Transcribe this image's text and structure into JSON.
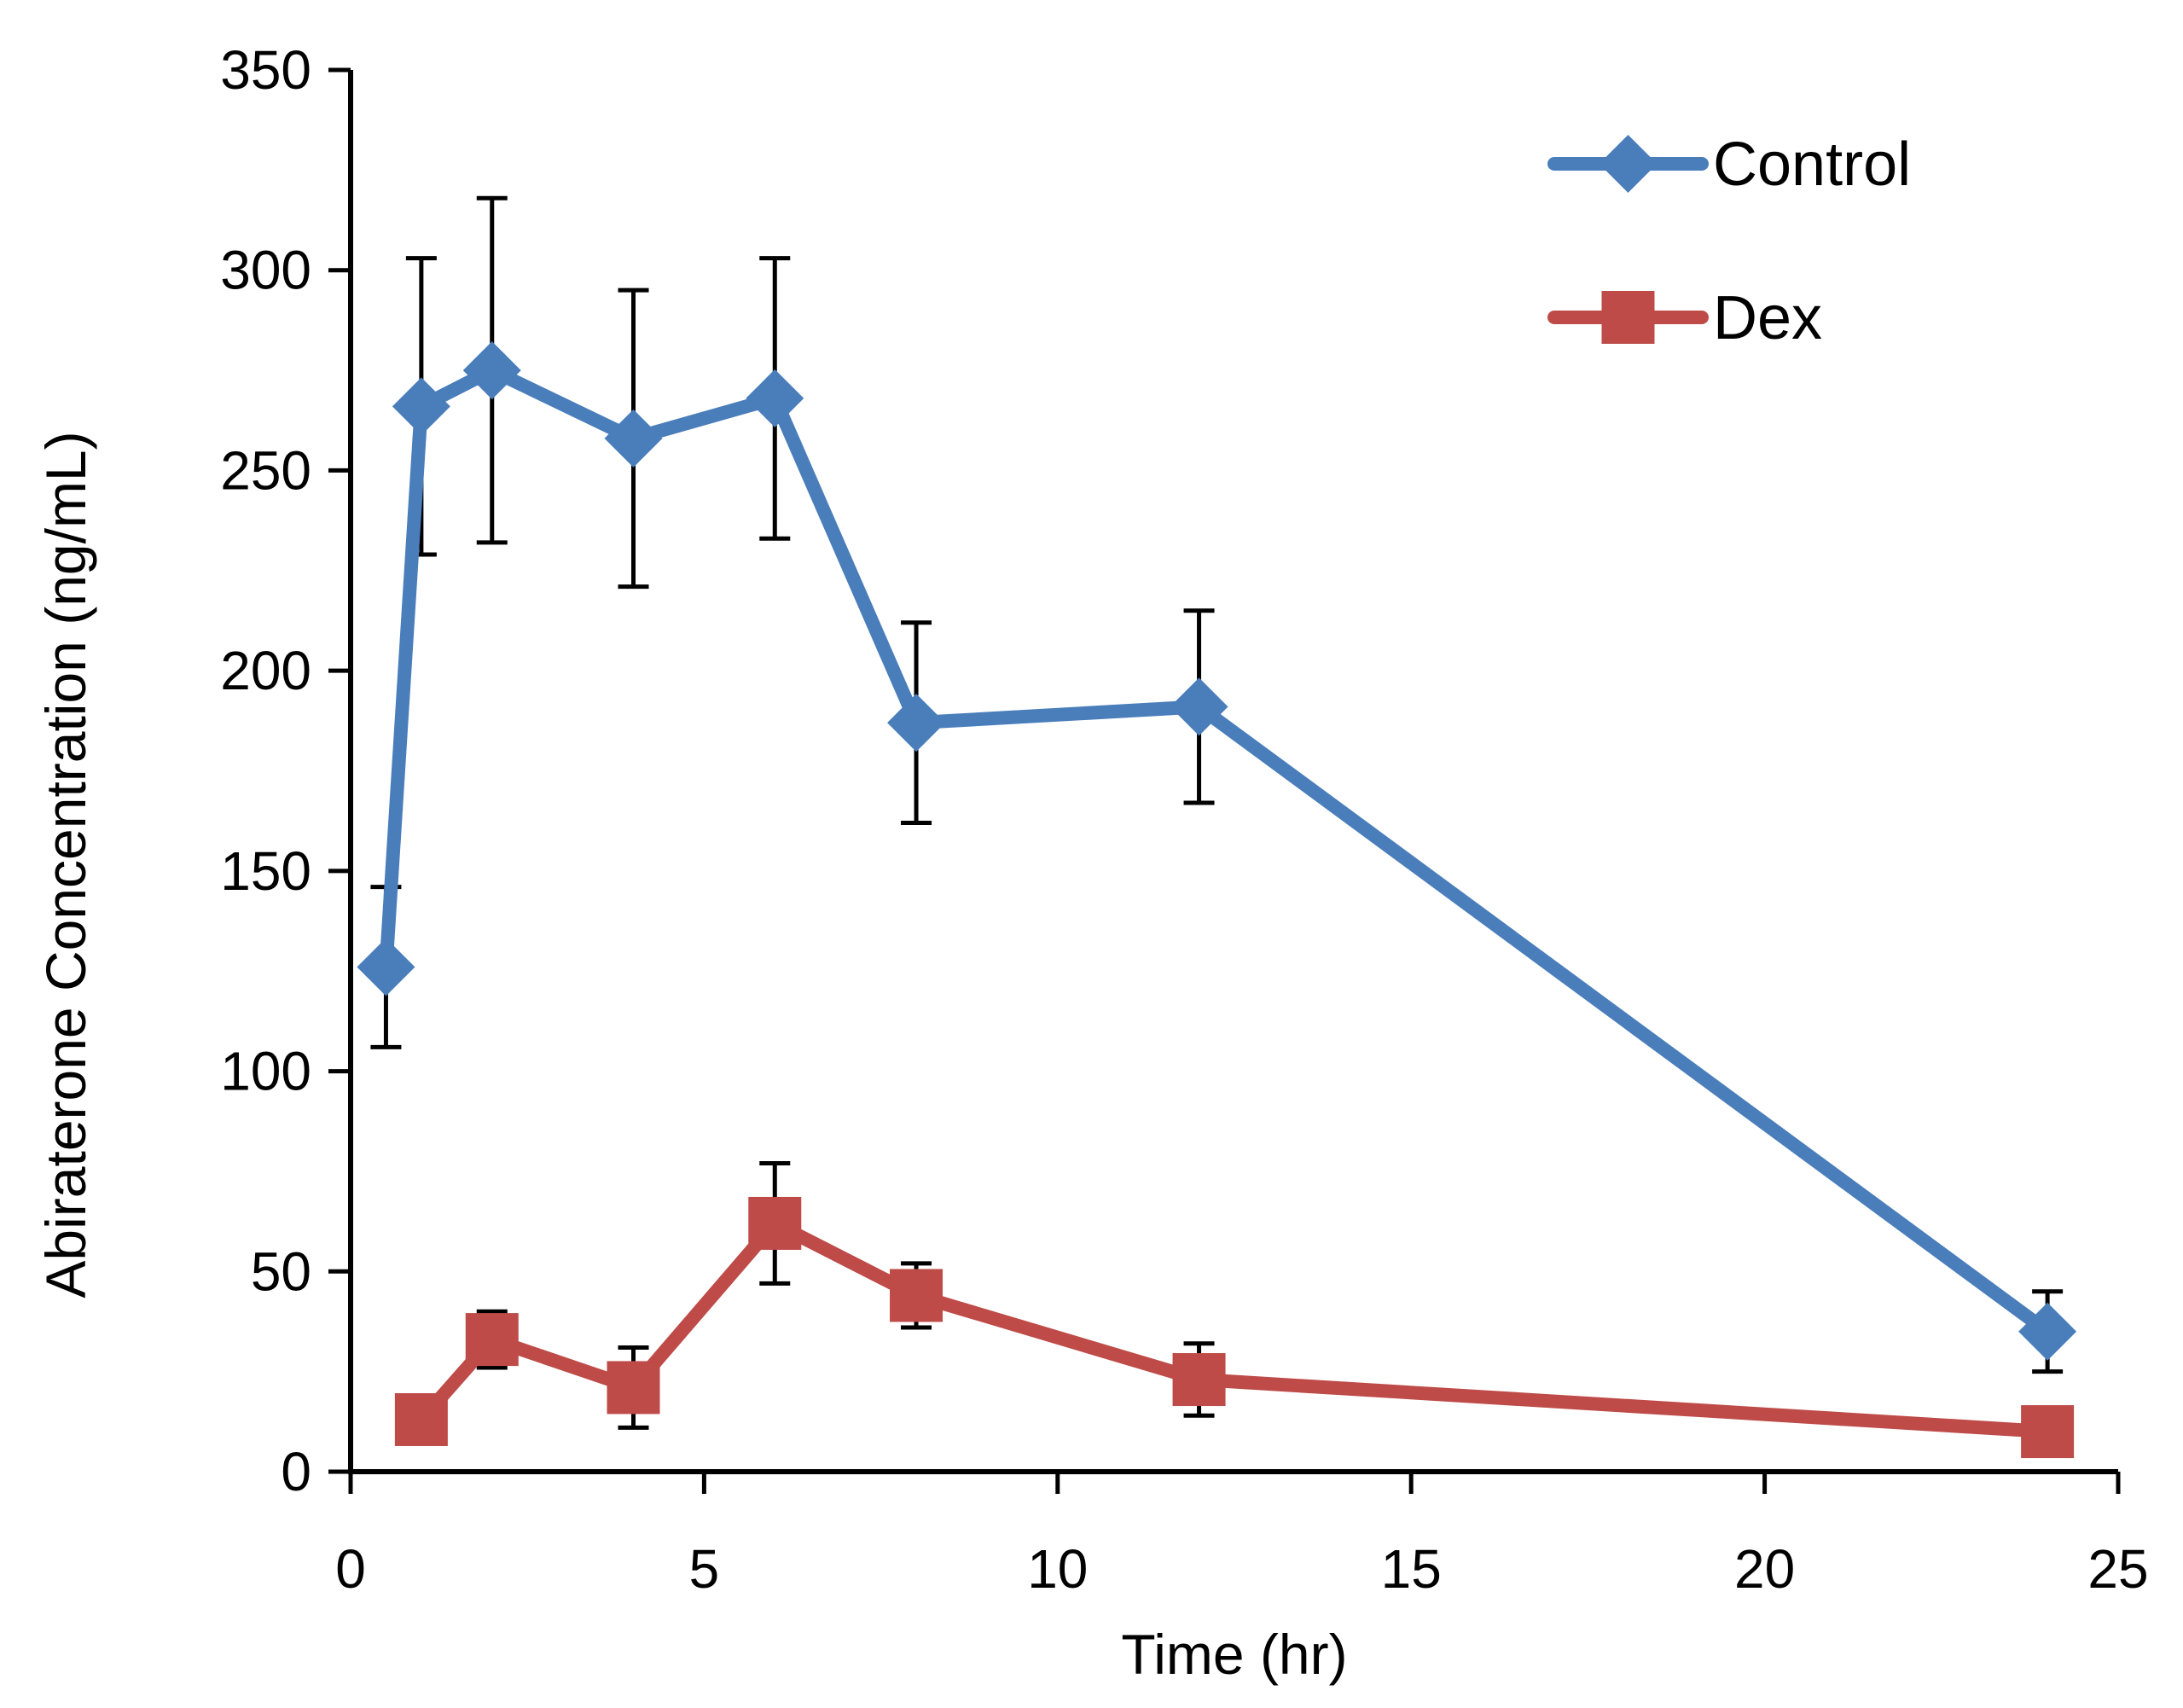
{
  "chart_data": {
    "type": "line",
    "title": "",
    "xlabel": "Time (hr)",
    "ylabel": "Abiraterone  Concentration (ng/mL)",
    "xlim": [
      0,
      25
    ],
    "ylim": [
      0,
      350
    ],
    "xticks": [
      0,
      5,
      10,
      15,
      20,
      25
    ],
    "yticks": [
      0,
      50,
      100,
      150,
      200,
      250,
      300,
      350
    ],
    "grid": false,
    "legend": "top-right",
    "series": [
      {
        "name": "Control",
        "color": "#4a7ebb",
        "marker": "diamond",
        "x": [
          0.5,
          1,
          2,
          4,
          6,
          8,
          12,
          24
        ],
        "y": [
          126,
          266,
          275,
          258,
          268,
          187,
          191,
          35
        ],
        "error": [
          20,
          37,
          43,
          37,
          35,
          25,
          24,
          10
        ]
      },
      {
        "name": "Dex",
        "color": "#be4b48",
        "marker": "square",
        "x": [
          1,
          2,
          4,
          6,
          8,
          12,
          24
        ],
        "y": [
          13,
          33,
          21,
          62,
          44,
          23,
          10
        ],
        "error": [
          0,
          7,
          10,
          15,
          8,
          9,
          0
        ]
      }
    ]
  }
}
